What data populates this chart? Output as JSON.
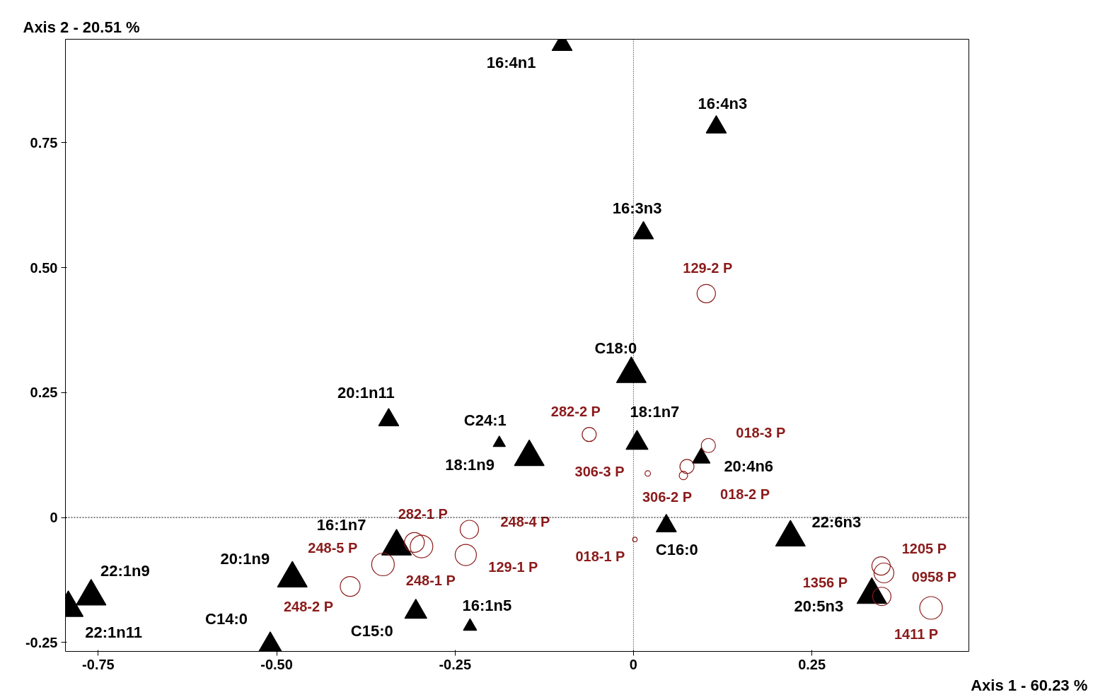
{
  "chart_data": {
    "type": "bubble",
    "xlabel": "Axis 1  -  60.23 %",
    "ylabel": "Axis 2  -  20.51 %",
    "xlim": [
      -0.796,
      0.47
    ],
    "ylim": [
      -0.268,
      0.957
    ],
    "xticks": [
      {
        "value": -0.75,
        "label": "-0.75"
      },
      {
        "value": -0.5,
        "label": "-0.50"
      },
      {
        "value": -0.25,
        "label": "-0.25"
      },
      0,
      0.25
    ],
    "yticks": [
      {
        "value": -0.25,
        "label": "-0.25"
      },
      0,
      0.25,
      {
        "value": 0.5,
        "label": "0.50"
      },
      0.75
    ],
    "grid": false,
    "ref_lines": [
      {
        "axis": "x",
        "value": 0,
        "line_style": "dotted"
      },
      {
        "axis": "y",
        "value": 0,
        "line_style": "dotted"
      }
    ],
    "series": [
      {
        "marker": "triangle",
        "color": "#000000",
        "x": [
          -0.1,
          0.116,
          0.014,
          -0.003,
          -0.343,
          -0.188,
          -0.146,
          0.005,
          0.095,
          0.046,
          0.22,
          -0.332,
          -0.478,
          -0.76,
          -0.792,
          -0.509,
          -0.305,
          -0.229,
          0.334
        ],
        "values": [
          0.946,
          0.781,
          0.569,
          0.287,
          0.195,
          0.149,
          0.121,
          0.149,
          0.119,
          -0.017,
          -0.04,
          -0.058,
          -0.122,
          -0.158,
          -0.181,
          -0.263,
          -0.189,
          -0.218,
          -0.155
        ],
        "sizes": [
          0.46,
          0.46,
          0.46,
          1,
          0.46,
          0.17,
          1,
          0.55,
          0.35,
          0.46,
          1,
          1,
          1,
          1,
          1,
          1,
          0.55,
          0.2,
          1
        ],
        "value_labels": [
          "16:4n1",
          "16:4n3",
          "16:3n3",
          "C18:0",
          "20:1n11",
          "C24:1",
          "18:1n9",
          "18:1n7",
          "20:4n6",
          "C16:0",
          "22:6n3",
          "16:1n7",
          "20:1n9",
          "22:1n9",
          "22:1n11",
          "C14:0",
          "C15:0",
          "16:1n5",
          "20:5n3"
        ]
      },
      {
        "marker": "circle",
        "color": "#8b1a1a",
        "x": [
          0.102,
          -0.062,
          0.105,
          0.02,
          0.07,
          0.075,
          -0.307,
          -0.351,
          -0.23,
          -0.235,
          -0.297,
          -0.397,
          0.002,
          0.347,
          0.351,
          0.348,
          0.417
        ],
        "values": [
          0.448,
          0.166,
          0.144,
          0.088,
          0.084,
          0.102,
          -0.05,
          -0.094,
          -0.024,
          -0.075,
          -0.058,
          -0.138,
          -0.044,
          -0.097,
          -0.111,
          -0.158,
          -0.181
        ],
        "sizes": [
          0.66,
          0.39,
          0.39,
          0.06,
          0.14,
          0.39,
          0.77,
          1,
          0.66,
          0.88,
          1,
          0.77,
          0.04,
          0.66,
          0.77,
          0.66,
          1
        ],
        "value_labels": [
          "129-2 P",
          "282-2 P",
          "018-3 P",
          "306-3 P",
          "306-2 P",
          "018-2 P",
          "282-1 P",
          "248-5 P",
          "248-4 P",
          "129-1 P",
          "248-1 P",
          "248-2 P",
          "018-1 P",
          null,
          null,
          null,
          null
        ]
      }
    ],
    "annotations": [
      {
        "text": "1205 P",
        "x": 0.347,
        "y": -0.097
      },
      {
        "text": "0958 P",
        "x": 0.351,
        "y": -0.111
      },
      {
        "text": "1356 P",
        "x": 0.348,
        "y": -0.158
      },
      {
        "text": "1411 P",
        "x": 0.417,
        "y": -0.181
      }
    ]
  }
}
